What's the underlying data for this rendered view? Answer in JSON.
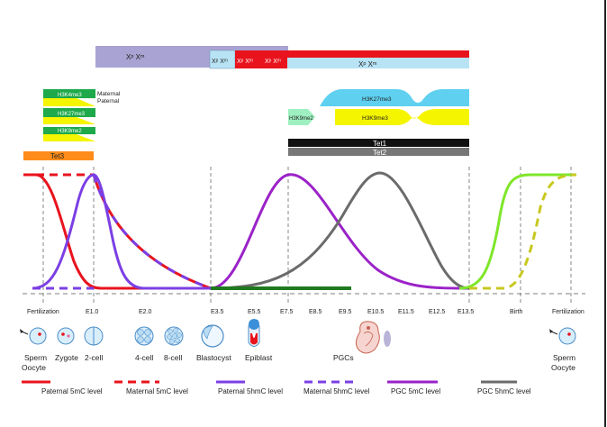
{
  "x_chromosome": {
    "xp_xm_left": "Xᵖ Xᵐ",
    "xp_xm_mid": "Xᵖ Xᵐ",
    "xp_inactive_a": "Xᵖ Xᵐ",
    "xp_inactive_b": "Xᵖ Xᵐ",
    "xp_xm_right": "Xᵖ Xᵐ"
  },
  "histone": {
    "h3k4me3": "H3K4me3",
    "h3k27me3_left": "H3K27me3",
    "h3k9me2_left": "H3K9me2",
    "maternal": "Maternal",
    "paternal": "Paternal",
    "h3k27me3_right": "H3K27me3",
    "h3k9me2_right": "H3K9me2",
    "h3k9me3": "H3K9me3"
  },
  "enzymes": {
    "tet3": "Tet3",
    "tet1": "Tet1",
    "tet2": "Tet2"
  },
  "timeline": {
    "fertilization_left": "Fertilization",
    "e1": "E1.0",
    "e2": "E2.0",
    "e35": "E3.5",
    "e55": "E5.5",
    "e75": "E7.5",
    "e85": "E8.5",
    "e95": "E9.5",
    "e105": "E10.5",
    "e115": "E11.5",
    "e125": "E12.5",
    "e135": "E13.5",
    "birth": "Birth",
    "fertilization_right": "Fertilization"
  },
  "stages": {
    "sperm_left": "Sperm",
    "oocyte_left": "Oocyte",
    "zygote": "Zygote",
    "two_cell": "2-cell",
    "four_cell": "4-cell",
    "eight_cell": "8-cell",
    "blastocyst": "Blastocyst",
    "epiblast": "Epiblast",
    "pgcs": "PGCs",
    "sperm_right": "Sperm",
    "oocyte_right": "Oocyte"
  },
  "legend": [
    {
      "label": "Paternal 5mC level",
      "color": "#e8131d",
      "dash": false
    },
    {
      "label": "Maternal 5mC level",
      "color": "#e8131d",
      "dash": true
    },
    {
      "label": "Paternal 5hmC level",
      "color": "#7b3fe4",
      "dash": false
    },
    {
      "label": "Maternal 5hmC level",
      "color": "#7b3fe4",
      "dash": true
    },
    {
      "label": "PGC 5mC level",
      "color": "#9b22c8",
      "dash": false
    },
    {
      "label": "PGC 5hmC level",
      "color": "#6b6b6b",
      "dash": false
    }
  ],
  "colors": {
    "paternal_5mc": "#e8131d",
    "paternal_5hmc": "#7b3fe4",
    "pgc_5mc": "#9b22c8",
    "pgc_5hmc": "#6b6b6b",
    "green_gamete": "#7fe62a",
    "yellow_gamete": "#c8c820",
    "tet3": "#ff8c1a",
    "tet1": "#111111",
    "tet2": "#777777",
    "x_lavender": "#a9a3d3",
    "x_lightblue": "#b7e3f5",
    "x_red": "#e8131d",
    "histone_green": "#1ea94a",
    "histone_cyan": "#5fd0f0",
    "histone_yellow": "#f5f500",
    "histone_mint": "#9ef0c0"
  }
}
